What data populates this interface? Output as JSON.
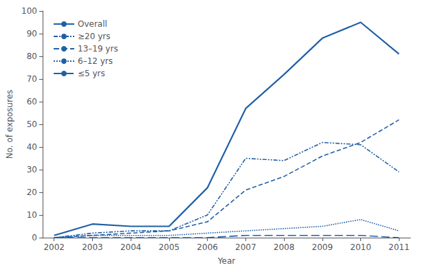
{
  "chart_data": {
    "type": "line",
    "x": [
      2002,
      2003,
      2004,
      2005,
      2006,
      2007,
      2008,
      2009,
      2010,
      2011
    ],
    "series": [
      {
        "name": "Overall",
        "color": "#1f5fa6",
        "line_style": "solid",
        "values": [
          1,
          6,
          5,
          5,
          22,
          57,
          72,
          88,
          95,
          81
        ]
      },
      {
        "name": "≥20 yrs",
        "color": "#1f5fa6",
        "line_style": "dashdotdot",
        "values": [
          0,
          2,
          3,
          3,
          10,
          35,
          34,
          42,
          41,
          29
        ]
      },
      {
        "name": "13–19 yrs",
        "color": "#1f5fa6",
        "line_style": "dashed",
        "values": [
          0,
          1,
          2,
          3,
          7,
          21,
          27,
          36,
          42,
          52
        ]
      },
      {
        "name": "6–12 yrs",
        "color": "#1f5fa6",
        "line_style": "dotted",
        "values": [
          0,
          1,
          1,
          1,
          2,
          3,
          4,
          5,
          8,
          3
        ]
      },
      {
        "name": "≤5 yrs",
        "color": "#1f5fa6",
        "line_style": "longdash",
        "values": [
          0,
          0,
          0,
          0,
          0,
          1,
          1,
          1,
          1,
          0
        ]
      }
    ],
    "xlabel": "Year",
    "ylabel": "No. of exposures",
    "xlim": [
      2001.7,
      2011.3
    ],
    "xticks": [
      2002,
      2003,
      2004,
      2005,
      2006,
      2007,
      2008,
      2009,
      2010,
      2011
    ],
    "ylim": [
      0,
      100
    ],
    "yticks": [
      0,
      10,
      20,
      30,
      40,
      50,
      60,
      70,
      80,
      90,
      100
    ],
    "grid": false,
    "legend": "upper left"
  }
}
